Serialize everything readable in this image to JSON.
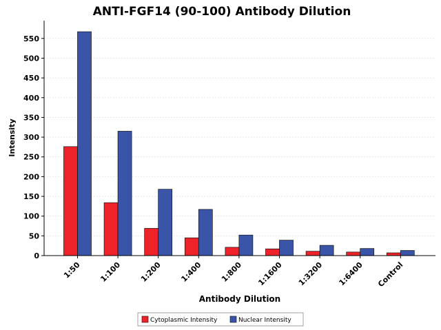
{
  "chart_data": {
    "type": "bar",
    "title": "ANTI-FGF14 (90-100) Antibody Dilution",
    "xlabel": "Antibody Dilution",
    "ylabel": "Intensity",
    "categories": [
      "1:50",
      "1:100",
      "1:200",
      "1:400",
      "1:800",
      "1:1600",
      "1:3200",
      "1:6400",
      "Control"
    ],
    "series": [
      {
        "name": "Cytoplasmic Intensity",
        "color": "#ee2229",
        "values": [
          276,
          134,
          69,
          45,
          21,
          17,
          11,
          9,
          7
        ]
      },
      {
        "name": "Nuclear Intensity",
        "color": "#3a55a8",
        "values": [
          567,
          315,
          168,
          117,
          52,
          39,
          26,
          18,
          13
        ]
      }
    ],
    "ylim": [
      0,
      595
    ],
    "yticks": [
      0,
      50,
      100,
      150,
      200,
      250,
      300,
      350,
      400,
      450,
      500,
      550
    ],
    "grid": true,
    "legend": "bottom"
  }
}
